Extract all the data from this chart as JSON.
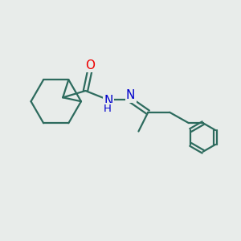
{
  "bg_color": "#e8ecea",
  "bond_color": "#2d6b5e",
  "bond_width": 1.6,
  "atom_colors": {
    "O": "#ee0000",
    "N": "#0000cc",
    "H": "#0000cc"
  },
  "font_size_atom": 11,
  "font_size_H": 9.5
}
